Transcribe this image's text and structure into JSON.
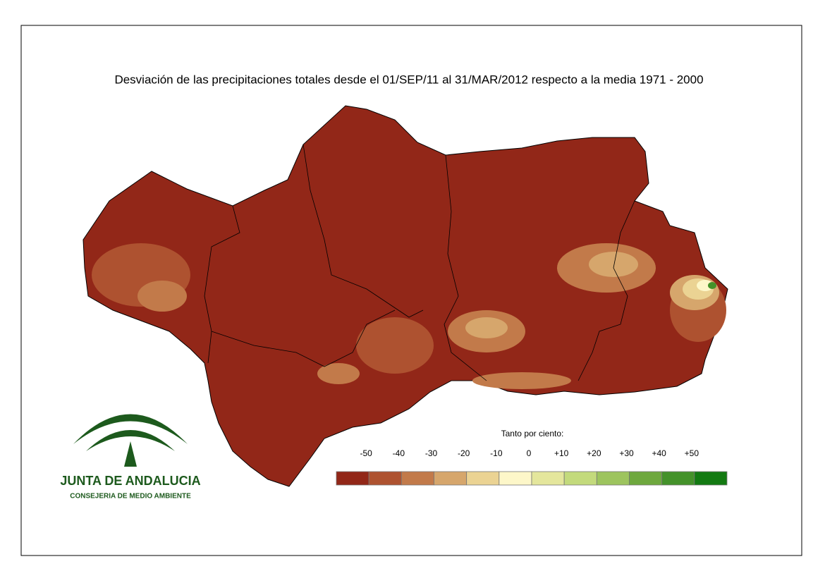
{
  "title": "Desviación de las precipitaciones totales desde el 01/SEP/11 al 31/MAR/2012 respecto a la media 1971 - 2000",
  "legend": {
    "title": "Tanto por ciento:",
    "labels": [
      "-50",
      "-40",
      "-30",
      "-20",
      "-10",
      "0",
      "+10",
      "+20",
      "+30",
      "+40",
      "+50"
    ],
    "colors": [
      "#922718",
      "#ae5230",
      "#c27a4a",
      "#d6a66c",
      "#ebd393",
      "#fdf7c9",
      "#e4e69c",
      "#c3da7c",
      "#9dc45e",
      "#6ea83e",
      "#44922a",
      "#137a12"
    ]
  },
  "logo": {
    "name": "JUNTA DE ANDALUCIA",
    "department": "CONSEJERIA DE MEDIO AMBIENTE"
  }
}
